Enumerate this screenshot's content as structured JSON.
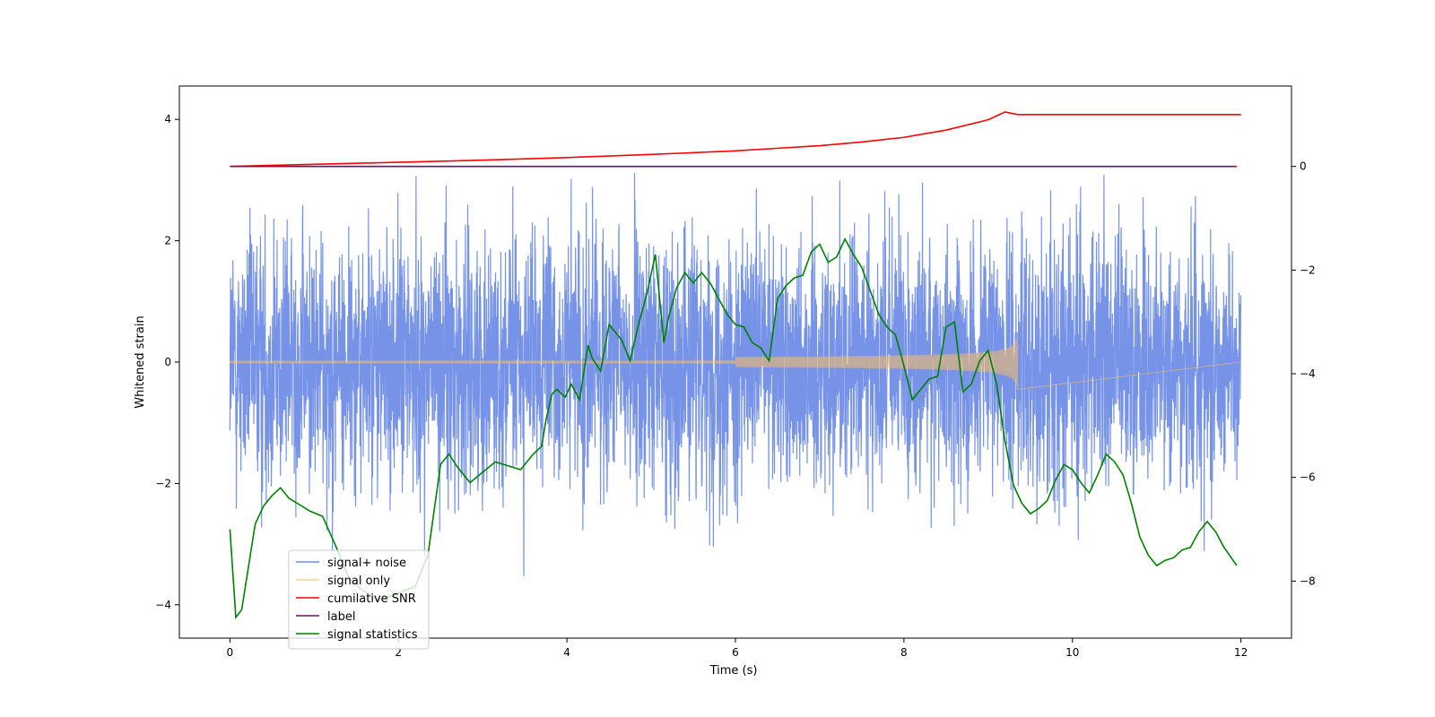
{
  "chart_data": {
    "type": "line",
    "title": "",
    "xlabel": "Time (s)",
    "ylabel": "Whitened strain",
    "xlim": [
      -0.6,
      12.6
    ],
    "ylim": [
      -4.55,
      4.55
    ],
    "y2lim": [
      -9.1,
      1.55
    ],
    "xticks": [
      0,
      2,
      4,
      6,
      8,
      10,
      12
    ],
    "yticks": [
      -4,
      -2,
      0,
      2,
      4
    ],
    "y2ticks": [
      -8,
      -6,
      -4,
      -2,
      0
    ],
    "legend_position": "lower-left",
    "series": [
      {
        "name": "signal+ noise",
        "color": "#6f8de6",
        "axis": "left",
        "kind": "noise",
        "t_range": [
          0,
          12
        ],
        "sigma": 1.05
      },
      {
        "name": "signal only",
        "color": "#ffbf60",
        "axis": "left",
        "kind": "chirp",
        "t_range": [
          0,
          9.35
        ],
        "base_amplitude": 0.01,
        "peak_amplitude": 0.45
      },
      {
        "name": "cumilative SNR",
        "color": "#ff0000",
        "axis": "right",
        "t": [
          0,
          1,
          2,
          3,
          4,
          5,
          6,
          7,
          7.5,
          8,
          8.5,
          9,
          9.2,
          9.35,
          9.36,
          12
        ],
        "values": [
          0,
          0.04,
          0.08,
          0.12,
          0.17,
          0.23,
          0.3,
          0.4,
          0.47,
          0.56,
          0.7,
          0.9,
          1.05,
          1.0,
          1.0,
          1.0
        ]
      },
      {
        "name": "label",
        "color": "#6a0f6a",
        "axis": "right",
        "t": [
          0,
          11.95
        ],
        "values": [
          0,
          0
        ]
      },
      {
        "name": "signal statistics",
        "color": "#008000",
        "axis": "right",
        "t": [
          0,
          0.07,
          0.14,
          0.3,
          0.4,
          0.5,
          0.6,
          0.7,
          0.8,
          0.95,
          1.1,
          1.25,
          1.4,
          1.55,
          1.75,
          1.9,
          2.05,
          2.2,
          2.35,
          2.5,
          2.6,
          2.7,
          2.85,
          3.0,
          3.15,
          3.25,
          3.45,
          3.6,
          3.7,
          3.75,
          3.82,
          3.88,
          3.98,
          4.05,
          4.15,
          4.25,
          4.3,
          4.4,
          4.5,
          4.55,
          4.65,
          4.75,
          4.85,
          4.95,
          5.05,
          5.15,
          5.2,
          5.3,
          5.4,
          5.5,
          5.6,
          5.7,
          5.8,
          5.9,
          6.0,
          6.1,
          6.2,
          6.3,
          6.4,
          6.5,
          6.6,
          6.7,
          6.8,
          6.9,
          7.0,
          7.1,
          7.2,
          7.3,
          7.4,
          7.5,
          7.6,
          7.7,
          7.8,
          7.9,
          8.0,
          8.1,
          8.2,
          8.3,
          8.4,
          8.5,
          8.6,
          8.7,
          8.8,
          8.9,
          9.0,
          9.1,
          9.2,
          9.3,
          9.4,
          9.5,
          9.6,
          9.7,
          9.8,
          9.9,
          10.0,
          10.1,
          10.2,
          10.3,
          10.4,
          10.5,
          10.6,
          10.7,
          10.8,
          10.9,
          11.0,
          11.1,
          11.2,
          11.3,
          11.4,
          11.5,
          11.6,
          11.7,
          11.8,
          11.95
        ],
        "values": [
          -7.0,
          -8.7,
          -8.55,
          -6.9,
          -6.55,
          -6.35,
          -6.2,
          -6.4,
          -6.5,
          -6.65,
          -6.75,
          -7.3,
          -7.9,
          -8.15,
          -8.35,
          -8.3,
          -8.2,
          -8.1,
          -7.5,
          -5.75,
          -5.55,
          -5.8,
          -6.1,
          -5.9,
          -5.7,
          -5.75,
          -5.85,
          -5.55,
          -5.4,
          -4.9,
          -4.4,
          -4.3,
          -4.45,
          -4.2,
          -4.5,
          -3.45,
          -3.7,
          -3.95,
          -3.05,
          -3.15,
          -3.35,
          -3.75,
          -3.05,
          -2.45,
          -1.7,
          -3.4,
          -2.95,
          -2.35,
          -2.05,
          -2.25,
          -2.05,
          -2.25,
          -2.55,
          -2.85,
          -3.05,
          -3.1,
          -3.4,
          -3.5,
          -3.75,
          -2.55,
          -2.3,
          -2.15,
          -2.1,
          -1.65,
          -1.5,
          -1.85,
          -1.75,
          -1.4,
          -1.7,
          -1.95,
          -2.4,
          -2.85,
          -3.1,
          -3.25,
          -3.85,
          -4.5,
          -4.3,
          -4.1,
          -4.05,
          -3.1,
          -3.0,
          -4.35,
          -4.2,
          -3.75,
          -3.55,
          -4.2,
          -5.3,
          -6.15,
          -6.5,
          -6.7,
          -6.6,
          -6.45,
          -6.05,
          -5.75,
          -5.85,
          -6.1,
          -6.3,
          -5.95,
          -5.55,
          -5.7,
          -5.95,
          -6.5,
          -7.15,
          -7.5,
          -7.7,
          -7.6,
          -7.55,
          -7.4,
          -7.35,
          -7.05,
          -6.85,
          -7.05,
          -7.35,
          -7.7
        ]
      }
    ]
  }
}
